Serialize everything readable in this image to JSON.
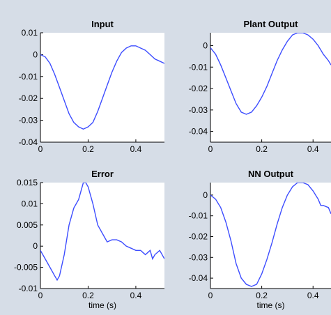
{
  "colors": {
    "background": "#d6dde7",
    "axes_bg": "#ffffff",
    "line": "#3d4dff",
    "axis": "#000000"
  },
  "chart_data": [
    {
      "type": "line",
      "title": "Input",
      "xlabel": "",
      "xlim": [
        0,
        0.52
      ],
      "ylim": [
        -0.04,
        0.01
      ],
      "xticks": [
        0,
        0.2,
        0.4
      ],
      "xtick_labels": [
        "0",
        "0.2",
        "0.4"
      ],
      "yticks": [
        0.01,
        0,
        -0.01,
        -0.02,
        -0.03,
        -0.04
      ],
      "ytick_labels": [
        "0.01",
        "0",
        "-0.01",
        "-0.02",
        "-0.03",
        "-0.04"
      ],
      "grid": false,
      "series": [
        {
          "x": [
            0,
            0.02,
            0.04,
            0.06,
            0.08,
            0.1,
            0.12,
            0.14,
            0.16,
            0.18,
            0.2,
            0.22,
            0.24,
            0.26,
            0.28,
            0.3,
            0.32,
            0.34,
            0.36,
            0.38,
            0.4,
            0.42,
            0.44,
            0.46,
            0.48,
            0.5,
            0.52
          ],
          "y": [
            0.0,
            -0.001,
            -0.004,
            -0.009,
            -0.015,
            -0.021,
            -0.027,
            -0.031,
            -0.033,
            -0.034,
            -0.033,
            -0.031,
            -0.026,
            -0.02,
            -0.014,
            -0.008,
            -0.003,
            0.001,
            0.003,
            0.004,
            0.004,
            0.003,
            0.002,
            0.0,
            -0.002,
            -0.003,
            -0.004
          ]
        }
      ]
    },
    {
      "type": "line",
      "title": "Plant Output",
      "xlabel": "",
      "xlim": [
        0,
        0.47
      ],
      "ylim": [
        -0.045,
        0.006
      ],
      "xticks": [
        0,
        0.2,
        0.4
      ],
      "xtick_labels": [
        "0",
        "0.2",
        "0.4"
      ],
      "yticks": [
        0,
        -0.01,
        -0.02,
        -0.03,
        -0.04
      ],
      "ytick_labels": [
        "0",
        "-0.01",
        "-0.02",
        "-0.03",
        "-0.04"
      ],
      "grid": false,
      "series": [
        {
          "x": [
            0,
            0.02,
            0.04,
            0.06,
            0.08,
            0.1,
            0.12,
            0.14,
            0.16,
            0.18,
            0.2,
            0.22,
            0.24,
            0.26,
            0.28,
            0.3,
            0.32,
            0.34,
            0.36,
            0.38,
            0.4,
            0.42,
            0.44,
            0.46,
            0.47
          ],
          "y": [
            -0.001,
            -0.004,
            -0.009,
            -0.015,
            -0.021,
            -0.027,
            -0.031,
            -0.032,
            -0.031,
            -0.028,
            -0.024,
            -0.019,
            -0.013,
            -0.007,
            -0.002,
            0.002,
            0.005,
            0.006,
            0.006,
            0.005,
            0.003,
            0.0,
            -0.004,
            -0.007,
            -0.009
          ]
        }
      ]
    },
    {
      "type": "line",
      "title": "Error",
      "xlabel": "time (s)",
      "xlim": [
        0,
        0.52
      ],
      "ylim": [
        -0.01,
        0.015
      ],
      "xticks": [
        0,
        0.2,
        0.4
      ],
      "xtick_labels": [
        "0",
        "0.2",
        "0.4"
      ],
      "yticks": [
        0.015,
        0.01,
        0.005,
        0,
        -0.005,
        -0.01
      ],
      "ytick_labels": [
        "0.015",
        "0.01",
        "0.005",
        "0",
        "-0.005",
        "-0.01"
      ],
      "grid": false,
      "series": [
        {
          "x": [
            0,
            0.02,
            0.04,
            0.06,
            0.07,
            0.08,
            0.1,
            0.12,
            0.14,
            0.16,
            0.18,
            0.19,
            0.2,
            0.22,
            0.24,
            0.26,
            0.28,
            0.3,
            0.32,
            0.34,
            0.36,
            0.38,
            0.4,
            0.42,
            0.44,
            0.46,
            0.47,
            0.48,
            0.5,
            0.52
          ],
          "y": [
            -0.001,
            -0.003,
            -0.005,
            -0.007,
            -0.008,
            -0.007,
            -0.002,
            0.005,
            0.009,
            0.011,
            0.015,
            0.015,
            0.014,
            0.01,
            0.005,
            0.003,
            0.001,
            0.0015,
            0.0015,
            0.001,
            0.0,
            -0.0005,
            -0.001,
            -0.001,
            -0.002,
            -0.001,
            -0.003,
            -0.002,
            -0.001,
            -0.003
          ]
        }
      ]
    },
    {
      "type": "line",
      "title": "NN Output",
      "xlabel": "time (s)",
      "xlim": [
        0,
        0.47
      ],
      "ylim": [
        -0.045,
        0.006
      ],
      "xticks": [
        0,
        0.2,
        0.4
      ],
      "xtick_labels": [
        "0",
        "0.2",
        "0.4"
      ],
      "yticks": [
        0,
        -0.01,
        -0.02,
        -0.03,
        -0.04
      ],
      "ytick_labels": [
        "0",
        "-0.01",
        "-0.02",
        "-0.03",
        "-0.04"
      ],
      "grid": false,
      "series": [
        {
          "x": [
            0,
            0.02,
            0.04,
            0.06,
            0.08,
            0.1,
            0.12,
            0.14,
            0.16,
            0.18,
            0.2,
            0.22,
            0.24,
            0.26,
            0.28,
            0.3,
            0.32,
            0.34,
            0.36,
            0.38,
            0.4,
            0.42,
            0.43,
            0.44,
            0.46,
            0.47
          ],
          "y": [
            0.0,
            -0.002,
            -0.006,
            -0.013,
            -0.022,
            -0.033,
            -0.04,
            -0.043,
            -0.044,
            -0.043,
            -0.038,
            -0.031,
            -0.023,
            -0.014,
            -0.006,
            0.0,
            0.004,
            0.006,
            0.006,
            0.005,
            0.002,
            -0.002,
            -0.005,
            -0.005,
            -0.006,
            -0.009
          ]
        }
      ]
    }
  ]
}
